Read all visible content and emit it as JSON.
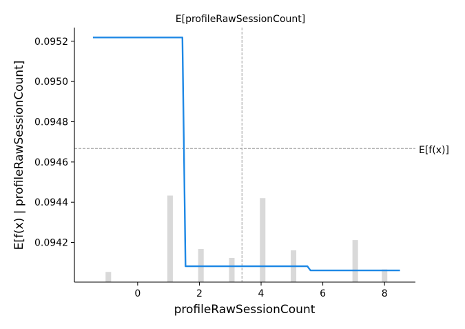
{
  "chart_data": {
    "type": "line",
    "title": "E[profileRawSessionCount]",
    "xlabel": "profileRawSessionCount",
    "ylabel": "E[f(x) | profileRawSessionCount]",
    "xlim": [
      -2.05,
      9.0
    ],
    "ylim": [
      0.094003,
      0.095268
    ],
    "x_ticks": [
      0,
      2,
      4,
      6,
      8
    ],
    "y_ticks": [
      0.0942,
      0.0944,
      0.0946,
      0.0948,
      0.095,
      0.0952
    ],
    "y_tick_labels": [
      "0.0942",
      "0.0944",
      "0.0946",
      "0.0948",
      "0.0950",
      "0.0952"
    ],
    "series": [
      {
        "color": "#1e88e5",
        "points": [
          [
            -1.45,
            0.095219
          ],
          [
            1.45,
            0.095219
          ],
          [
            1.55,
            0.094082
          ],
          [
            5.5,
            0.094082
          ],
          [
            5.6,
            0.094061
          ],
          [
            8.5,
            0.094061
          ]
        ]
      }
    ],
    "histogram": {
      "color": "#d9d9d9",
      "bar_width": 0.18,
      "x": [
        -0.95,
        1.05,
        2.05,
        3.05,
        4.05,
        5.05,
        7.05,
        8.0
      ],
      "relative_height": [
        0.04,
        0.34,
        0.13,
        0.095,
        0.33,
        0.125,
        0.165,
        0.05
      ]
    },
    "expected_feature_value": 3.38,
    "expected_model_output": 0.094667,
    "expected_output_label": "E[f(x)]",
    "reference_line_color": "#999999"
  }
}
